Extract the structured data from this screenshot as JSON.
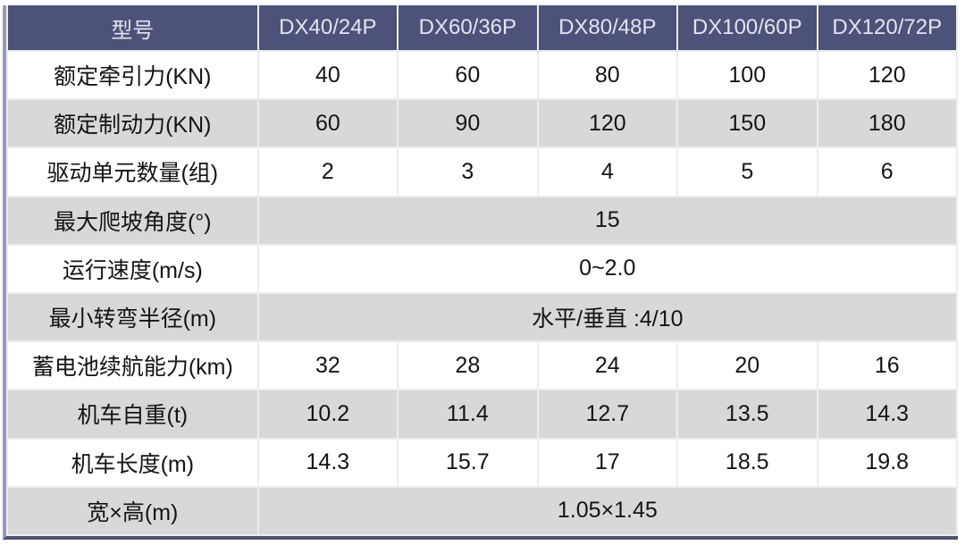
{
  "table": {
    "header": {
      "model_label": "型号",
      "models": [
        "DX40/24P",
        "DX60/36P",
        "DX80/48P",
        "DX100/60P",
        "DX120/72P"
      ]
    },
    "rows": [
      {
        "label": "额定牵引力(KN)",
        "values": [
          "40",
          "60",
          "80",
          "100",
          "120"
        ]
      },
      {
        "label": "额定制动力(KN)",
        "values": [
          "60",
          "90",
          "120",
          "150",
          "180"
        ]
      },
      {
        "label": "驱动单元数量(组)",
        "values": [
          "2",
          "3",
          "4",
          "5",
          "6"
        ]
      },
      {
        "label": "最大爬坡角度(°)",
        "span_value": "15"
      },
      {
        "label": "运行速度(m/s)",
        "span_value": "0~2.0"
      },
      {
        "label": "最小转弯半径(m)",
        "span_value": "水平/垂直 :4/10"
      },
      {
        "label": "蓄电池续航能力(km)",
        "values": [
          "32",
          "28",
          "24",
          "20",
          "16"
        ]
      },
      {
        "label": "机车自重(t)",
        "values": [
          "10.2",
          "11.4",
          "12.7",
          "13.5",
          "14.3"
        ]
      },
      {
        "label": "机车长度(m)",
        "values": [
          "14.3",
          "15.7",
          "17",
          "18.5",
          "19.8"
        ]
      },
      {
        "label": "宽×高(m)",
        "span_value": "1.05×1.45"
      }
    ],
    "colors": {
      "header_bg": "#4d527a",
      "header_text": "#e2e4ee",
      "row_bg": "#ffffff",
      "row_alt_bg": "#d8d8d8",
      "grid_line": "#ededed",
      "left_border": "#9997ba",
      "bottom_border": "#4c5176",
      "body_text": "#141414"
    }
  }
}
